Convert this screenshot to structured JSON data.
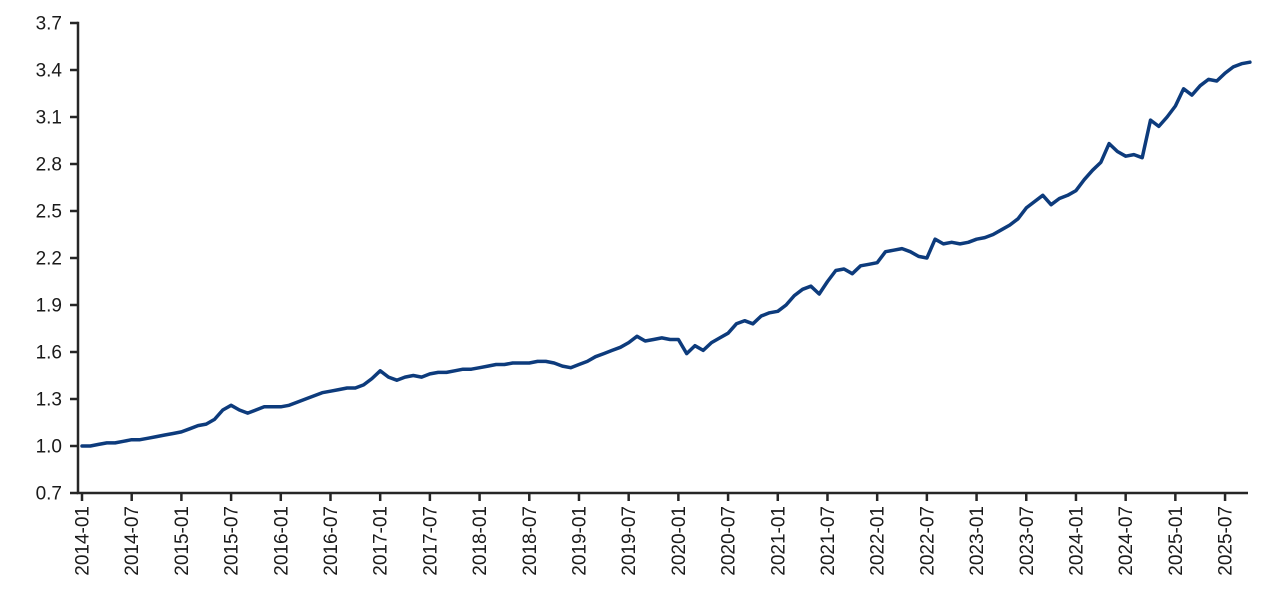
{
  "page": {
    "background": "#ffffff"
  },
  "chart_data": {
    "type": "line",
    "title": "",
    "xlabel": "",
    "ylabel": "",
    "legend_position": "none",
    "grid": false,
    "line_color": "#0d3b7c",
    "axis_color": "#262626",
    "tick_label_color": "#1a1a1a",
    "ylim": [
      0.7,
      3.7
    ],
    "y_ticks": [
      0.7,
      1.0,
      1.3,
      1.6,
      1.9,
      2.2,
      2.5,
      2.8,
      3.1,
      3.4,
      3.7
    ],
    "x_tick_labels": [
      "2014-01",
      "2014-07",
      "2015-01",
      "2015-07",
      "2016-01",
      "2016-07",
      "2017-01",
      "2017-07",
      "2018-01",
      "2018-07",
      "2019-01",
      "2019-07",
      "2020-01",
      "2020-07",
      "2021-01",
      "2021-07",
      "2022-01",
      "2022-07",
      "2023-01",
      "2023-07",
      "2024-01",
      "2024-07",
      "2025-01",
      "2025-07"
    ],
    "x_tick_every_months": 6,
    "x_start": "2014-01",
    "x_step_months": 1,
    "series": [
      {
        "name": "cumulative-index",
        "values": [
          1.0,
          1.0,
          1.01,
          1.02,
          1.02,
          1.03,
          1.04,
          1.04,
          1.05,
          1.06,
          1.07,
          1.08,
          1.09,
          1.11,
          1.13,
          1.14,
          1.17,
          1.23,
          1.26,
          1.23,
          1.21,
          1.23,
          1.25,
          1.25,
          1.25,
          1.26,
          1.28,
          1.3,
          1.32,
          1.34,
          1.35,
          1.36,
          1.37,
          1.37,
          1.39,
          1.43,
          1.48,
          1.44,
          1.42,
          1.44,
          1.45,
          1.44,
          1.46,
          1.47,
          1.47,
          1.48,
          1.49,
          1.49,
          1.5,
          1.51,
          1.52,
          1.52,
          1.53,
          1.53,
          1.53,
          1.54,
          1.54,
          1.53,
          1.51,
          1.5,
          1.52,
          1.54,
          1.57,
          1.59,
          1.61,
          1.63,
          1.66,
          1.7,
          1.67,
          1.68,
          1.69,
          1.68,
          1.68,
          1.59,
          1.64,
          1.61,
          1.66,
          1.69,
          1.72,
          1.78,
          1.8,
          1.78,
          1.83,
          1.85,
          1.86,
          1.9,
          1.96,
          2.0,
          2.02,
          1.97,
          2.05,
          2.12,
          2.13,
          2.1,
          2.15,
          2.16,
          2.17,
          2.24,
          2.25,
          2.26,
          2.24,
          2.21,
          2.2,
          2.32,
          2.29,
          2.3,
          2.29,
          2.3,
          2.32,
          2.33,
          2.35,
          2.38,
          2.41,
          2.45,
          2.52,
          2.56,
          2.6,
          2.54,
          2.58,
          2.6,
          2.63,
          2.7,
          2.76,
          2.81,
          2.93,
          2.88,
          2.85,
          2.86,
          2.84,
          3.08,
          3.04,
          3.1,
          3.17,
          3.28,
          3.24,
          3.3,
          3.34,
          3.33,
          3.38,
          3.42,
          3.44,
          3.45
        ]
      }
    ]
  }
}
